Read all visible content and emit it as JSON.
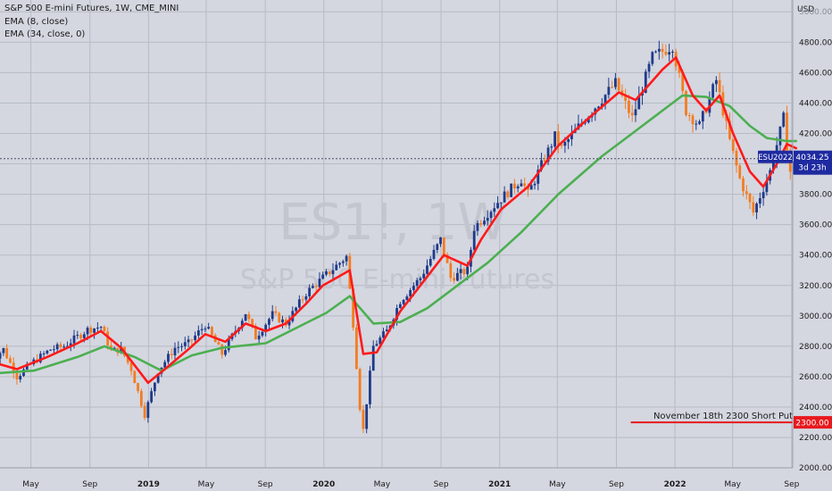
{
  "chart_data": {
    "type": "candlestick",
    "title": "S&P 500 E-mini Futures, 1W, CME_MINI",
    "watermark_symbol": "ES1!, 1W",
    "watermark_name": "S&P 500 E-mini Futures",
    "indicators": [
      {
        "name": "EMA (8, close)",
        "color": "#ff1a1a"
      },
      {
        "name": "EMA (34, close, 0)",
        "color": "#4caf50"
      }
    ],
    "currency_label": "USD",
    "ylim": [
      1960,
      5060
    ],
    "y_ticks": [
      "5000.00",
      "4800.00",
      "4600.00",
      "4400.00",
      "4200.00",
      "4000.00",
      "3800.00",
      "3600.00",
      "3400.00",
      "3200.00",
      "3000.00",
      "2800.00",
      "2600.00",
      "2400.00",
      "2200.00",
      "2000.00"
    ],
    "x_ticks": [
      {
        "label": "May",
        "date": "2018-05-01",
        "bold": false
      },
      {
        "label": "Sep",
        "date": "2018-09-01",
        "bold": false
      },
      {
        "label": "2019",
        "date": "2019-01-01",
        "bold": true
      },
      {
        "label": "May",
        "date": "2019-05-01",
        "bold": false
      },
      {
        "label": "Sep",
        "date": "2019-09-01",
        "bold": false
      },
      {
        "label": "2020",
        "date": "2020-01-01",
        "bold": true
      },
      {
        "label": "May",
        "date": "2020-05-01",
        "bold": false
      },
      {
        "label": "Sep",
        "date": "2020-09-01",
        "bold": false
      },
      {
        "label": "2021",
        "date": "2021-01-01",
        "bold": true
      },
      {
        "label": "May",
        "date": "2021-05-01",
        "bold": false
      },
      {
        "label": "Sep",
        "date": "2021-09-01",
        "bold": false
      },
      {
        "label": "2022",
        "date": "2022-01-01",
        "bold": true
      },
      {
        "label": "May",
        "date": "2022-05-01",
        "bold": false
      },
      {
        "label": "Sep",
        "date": "2022-09-01",
        "bold": false
      }
    ],
    "price_path": [
      [
        "2018-02-05",
        2700
      ],
      [
        "2018-03-05",
        2780
      ],
      [
        "2018-04-02",
        2600
      ],
      [
        "2018-05-07",
        2700
      ],
      [
        "2018-06-11",
        2780
      ],
      [
        "2018-07-09",
        2800
      ],
      [
        "2018-08-27",
        2910
      ],
      [
        "2018-09-24",
        2930
      ],
      [
        "2018-10-15",
        2770
      ],
      [
        "2018-11-05",
        2780
      ],
      [
        "2018-11-26",
        2650
      ],
      [
        "2018-12-24",
        2350
      ],
      [
        "2019-01-21",
        2640
      ],
      [
        "2019-02-25",
        2790
      ],
      [
        "2019-03-25",
        2820
      ],
      [
        "2019-04-29",
        2940
      ],
      [
        "2019-06-03",
        2750
      ],
      [
        "2019-07-22",
        3020
      ],
      [
        "2019-08-12",
        2860
      ],
      [
        "2019-09-16",
        3010
      ],
      [
        "2019-10-14",
        2950
      ],
      [
        "2019-11-25",
        3150
      ],
      [
        "2019-12-30",
        3250
      ],
      [
        "2020-02-17",
        3390
      ],
      [
        "2020-03-02",
        2950
      ],
      [
        "2020-03-16",
        2400
      ],
      [
        "2020-03-23",
        2250
      ],
      [
        "2020-04-13",
        2800
      ],
      [
        "2020-05-11",
        2900
      ],
      [
        "2020-06-08",
        3100
      ],
      [
        "2020-07-20",
        3250
      ],
      [
        "2020-08-31",
        3500
      ],
      [
        "2020-09-21",
        3250
      ],
      [
        "2020-10-26",
        3300
      ],
      [
        "2020-11-09",
        3580
      ],
      [
        "2020-12-28",
        3750
      ],
      [
        "2021-02-15",
        3900
      ],
      [
        "2021-03-01",
        3800
      ],
      [
        "2021-04-26",
        4180
      ],
      [
        "2021-05-10",
        4100
      ],
      [
        "2021-06-28",
        4300
      ],
      [
        "2021-08-30",
        4530
      ],
      [
        "2021-10-04",
        4300
      ],
      [
        "2021-11-15",
        4700
      ],
      [
        "2021-12-27",
        4780
      ],
      [
        "2022-01-24",
        4350
      ],
      [
        "2022-02-21",
        4250
      ],
      [
        "2022-03-28",
        4550
      ],
      [
        "2022-04-25",
        4150
      ],
      [
        "2022-05-16",
        3900
      ],
      [
        "2022-06-13",
        3680
      ],
      [
        "2022-07-18",
        3950
      ],
      [
        "2022-08-15",
        4300
      ],
      [
        "2022-08-29",
        3950
      ],
      [
        "2022-09-12",
        4034.25
      ]
    ],
    "ema8": [
      [
        "2018-02-05",
        2700
      ],
      [
        "2018-04-02",
        2650
      ],
      [
        "2018-06-04",
        2730
      ],
      [
        "2018-08-06",
        2820
      ],
      [
        "2018-09-24",
        2900
      ],
      [
        "2018-11-05",
        2790
      ],
      [
        "2018-12-31",
        2560
      ],
      [
        "2019-02-04",
        2650
      ],
      [
        "2019-03-25",
        2780
      ],
      [
        "2019-04-29",
        2880
      ],
      [
        "2019-06-10",
        2830
      ],
      [
        "2019-07-22",
        2950
      ],
      [
        "2019-09-02",
        2900
      ],
      [
        "2019-10-14",
        2950
      ],
      [
        "2019-11-25",
        3080
      ],
      [
        "2019-12-30",
        3200
      ],
      [
        "2020-02-24",
        3300
      ],
      [
        "2020-03-23",
        2750
      ],
      [
        "2020-04-20",
        2760
      ],
      [
        "2020-06-08",
        3030
      ],
      [
        "2020-07-20",
        3200
      ],
      [
        "2020-09-07",
        3400
      ],
      [
        "2020-10-26",
        3330
      ],
      [
        "2020-11-23",
        3500
      ],
      [
        "2021-01-04",
        3700
      ],
      [
        "2021-03-01",
        3850
      ],
      [
        "2021-05-03",
        4120
      ],
      [
        "2021-07-05",
        4300
      ],
      [
        "2021-09-06",
        4470
      ],
      [
        "2021-10-11",
        4420
      ],
      [
        "2021-12-06",
        4620
      ],
      [
        "2022-01-03",
        4700
      ],
      [
        "2022-02-07",
        4450
      ],
      [
        "2022-03-07",
        4350
      ],
      [
        "2022-04-04",
        4450
      ],
      [
        "2022-05-02",
        4200
      ],
      [
        "2022-06-06",
        3950
      ],
      [
        "2022-07-04",
        3850
      ],
      [
        "2022-08-01",
        4000
      ],
      [
        "2022-08-22",
        4130
      ],
      [
        "2022-09-12",
        4100
      ]
    ],
    "ema34": [
      [
        "2018-02-05",
        2620
      ],
      [
        "2018-05-07",
        2640
      ],
      [
        "2018-08-06",
        2730
      ],
      [
        "2018-10-01",
        2800
      ],
      [
        "2018-12-03",
        2730
      ],
      [
        "2019-01-28",
        2640
      ],
      [
        "2019-04-01",
        2740
      ],
      [
        "2019-06-03",
        2790
      ],
      [
        "2019-09-02",
        2820
      ],
      [
        "2019-11-04",
        2920
      ],
      [
        "2020-01-06",
        3020
      ],
      [
        "2020-02-24",
        3130
      ],
      [
        "2020-04-13",
        2950
      ],
      [
        "2020-06-08",
        2960
      ],
      [
        "2020-08-03",
        3050
      ],
      [
        "2020-10-05",
        3200
      ],
      [
        "2020-12-07",
        3350
      ],
      [
        "2021-02-15",
        3550
      ],
      [
        "2021-05-03",
        3800
      ],
      [
        "2021-08-02",
        4050
      ],
      [
        "2021-10-04",
        4200
      ],
      [
        "2021-12-06",
        4350
      ],
      [
        "2022-01-17",
        4450
      ],
      [
        "2022-03-07",
        4440
      ],
      [
        "2022-04-25",
        4380
      ],
      [
        "2022-06-06",
        4250
      ],
      [
        "2022-07-11",
        4170
      ],
      [
        "2022-08-22",
        4150
      ],
      [
        "2022-09-12",
        4150
      ]
    ],
    "last_price": {
      "symbol": "ESU2022",
      "value": "4034.25",
      "countdown": "3d 23h",
      "numeric": 4034.25,
      "color": "#1e2aa0"
    },
    "annotation": {
      "text": "November 18th 2300 Short Put",
      "level": 2300,
      "label": "2300.00",
      "line_start": "2021-10-01",
      "line_end": "2022-09-19",
      "color": "#e8191e"
    }
  }
}
